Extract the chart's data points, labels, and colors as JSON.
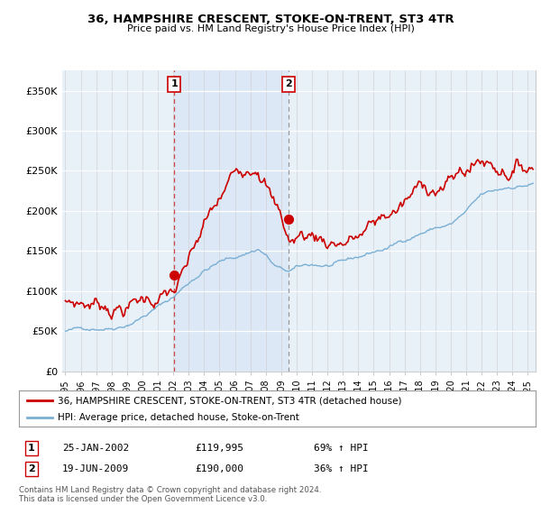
{
  "title1": "36, HAMPSHIRE CRESCENT, STOKE-ON-TRENT, ST3 4TR",
  "title2": "Price paid vs. HM Land Registry's House Price Index (HPI)",
  "ylabel_ticks": [
    "£0",
    "£50K",
    "£100K",
    "£150K",
    "£200K",
    "£250K",
    "£300K",
    "£350K"
  ],
  "ytick_vals": [
    0,
    50000,
    100000,
    150000,
    200000,
    250000,
    300000,
    350000
  ],
  "ylim": [
    0,
    375000
  ],
  "xlim_start": 1994.8,
  "xlim_end": 2025.5,
  "background_color": "#e8f0f8",
  "fig_bg": "#ffffff",
  "hpi_color": "#7aafd4",
  "price_color": "#cc0000",
  "sale1_date": "25-JAN-2002",
  "sale1_price": "£119,995",
  "sale1_hpi": "69% ↑ HPI",
  "sale2_date": "19-JUN-2009",
  "sale2_price": "£190,000",
  "sale2_hpi": "36% ↑ HPI",
  "legend_line1": "36, HAMPSHIRE CRESCENT, STOKE-ON-TRENT, ST3 4TR (detached house)",
  "legend_line2": "HPI: Average price, detached house, Stoke-on-Trent",
  "footer": "Contains HM Land Registry data © Crown copyright and database right 2024.\nThis data is licensed under the Open Government Licence v3.0.",
  "sale1_x": 2002.07,
  "sale1_y": 119995,
  "sale2_x": 2009.46,
  "sale2_y": 190000,
  "vline1_x": 2002.07,
  "vline2_x": 2009.46,
  "shade_color": "#dce8f5",
  "grid_color": "#cccccc",
  "vline1_color": "#cc4444",
  "vline2_color": "#999999"
}
